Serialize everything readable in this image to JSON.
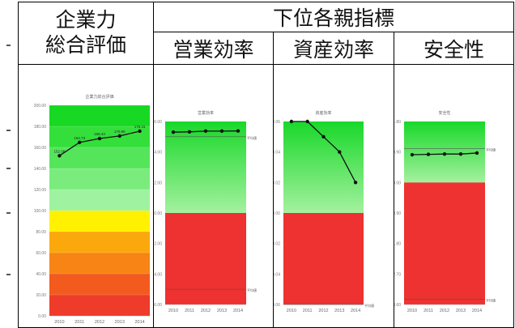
{
  "table": {
    "corner_line1": "企業力",
    "corner_line2": "総合評価",
    "group_header": "下位各親指標",
    "col1": "営業効率",
    "col2": "資産効率",
    "col3": "安全性"
  },
  "chart_data": [
    {
      "type": "line",
      "title": "企業力総合評価",
      "categories": [
        "2010",
        "2011",
        "2012",
        "2013",
        "2014"
      ],
      "values": [
        152.08,
        164.73,
        168.44,
        170.86,
        175.41
      ],
      "point_labels": [
        "152.08",
        "164.73",
        "168.44",
        "170.86",
        "175.41"
      ],
      "ylim": [
        0,
        200
      ],
      "yticks": [
        "0.00",
        "20.00",
        "40.00",
        "60.00",
        "80.00",
        "100.00",
        "120.00",
        "140.00",
        "160.00",
        "180.00",
        "200.00"
      ],
      "bands": [
        {
          "from": 0,
          "to": 20,
          "color": "#ee3b2a"
        },
        {
          "from": 20,
          "to": 40,
          "color": "#f25a1e"
        },
        {
          "from": 40,
          "to": 60,
          "color": "#f78415"
        },
        {
          "from": 60,
          "to": 80,
          "color": "#fba80c"
        },
        {
          "from": 80,
          "to": 100,
          "color": "#fff100"
        },
        {
          "from": 100,
          "to": 120,
          "color": "#9ff29f"
        },
        {
          "from": 120,
          "to": 140,
          "color": "#7aec7e"
        },
        {
          "from": 140,
          "to": 160,
          "color": "#55e55b"
        },
        {
          "from": 160,
          "to": 180,
          "color": "#34df3c"
        },
        {
          "from": 180,
          "to": 200,
          "color": "#17d822"
        }
      ]
    },
    {
      "type": "line",
      "title": "営業効率",
      "categories": [
        "2010",
        "2011",
        "2012",
        "2013",
        "2014"
      ],
      "values": [
        5.3,
        5.32,
        5.37,
        5.37,
        5.38
      ],
      "ylim": [
        -6,
        6
      ],
      "yticks": [
        "-6.00",
        "-4.00",
        "-2.00",
        "0.00",
        "2.00",
        "4.00",
        "6.00"
      ],
      "ref_lines": [
        {
          "value": 5.0,
          "label": "平均値"
        },
        {
          "value": -5.0,
          "label": "平均値"
        }
      ],
      "split": 0
    },
    {
      "type": "line",
      "title": "資産効率",
      "categories": [
        "2010",
        "2011",
        "2012",
        "2013",
        "2014"
      ],
      "values": [
        0.06,
        0.06,
        0.05,
        0.04,
        0.02
      ],
      "ylim": [
        -0.06,
        0.06
      ],
      "yticks": [
        "-0.06",
        "-0.04",
        "-0.02",
        "0.00",
        "0.02",
        "0.04",
        "0.06"
      ],
      "ref_lines": [
        {
          "value": -0.06,
          "label": "平均値"
        }
      ],
      "split": 0
    },
    {
      "type": "line",
      "title": "安全性",
      "categories": [
        "2010",
        "2011",
        "2012",
        "2013",
        "2014"
      ],
      "values": [
        0.82,
        0.83,
        0.84,
        0.84,
        0.87
      ],
      "ylim": [
        -3.6,
        1.8
      ],
      "yticks": [
        "-3.60",
        "-2.70",
        "-1.80",
        "-0.90",
        "0.00",
        "0.90",
        "1.80"
      ],
      "ref_lines": [
        {
          "value": 1.0,
          "label": "平均値"
        },
        {
          "value": -3.45,
          "label": "平均値"
        }
      ],
      "split": 0
    }
  ]
}
